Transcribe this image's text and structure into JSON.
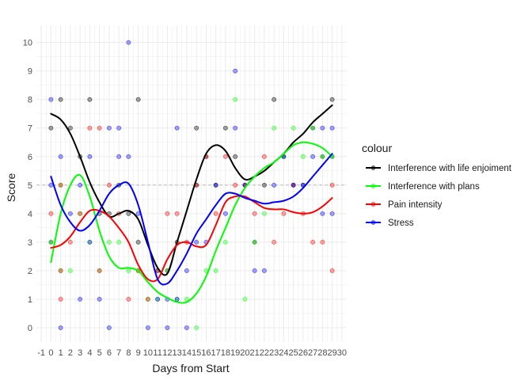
{
  "chart_data": {
    "type": "scatter",
    "title": "",
    "xlabel": "Days from Start",
    "ylabel": "Score",
    "xlim": [
      -1,
      30
    ],
    "ylim": [
      0,
      10
    ],
    "x_ticks": [
      -1,
      0,
      1,
      2,
      3,
      4,
      5,
      6,
      7,
      8,
      9,
      10,
      11,
      12,
      13,
      14,
      15,
      16,
      17,
      18,
      19,
      20,
      21,
      22,
      23,
      24,
      25,
      26,
      27,
      28,
      29,
      30
    ],
    "y_ticks": [
      0,
      1,
      2,
      3,
      4,
      5,
      6,
      7,
      8,
      9,
      10
    ],
    "reference_line": {
      "y": 5,
      "style": "dashed",
      "color": "#bdbdbd"
    },
    "grid": true,
    "legend": {
      "title": "colour",
      "position": "right"
    },
    "series": [
      {
        "name": "Interference with life enjoiment",
        "color": "#000000",
        "points": [
          [
            0,
            7
          ],
          [
            0,
            3
          ],
          [
            1,
            8
          ],
          [
            2,
            7
          ],
          [
            3,
            6
          ],
          [
            4,
            8
          ],
          [
            5,
            4
          ],
          [
            6,
            4
          ],
          [
            7,
            5
          ],
          [
            8,
            4
          ],
          [
            9,
            8
          ],
          [
            9,
            3
          ],
          [
            11,
            2
          ],
          [
            12,
            2
          ],
          [
            13,
            3
          ],
          [
            15,
            5
          ],
          [
            15,
            7
          ],
          [
            16,
            6
          ],
          [
            17,
            5
          ],
          [
            18,
            7
          ],
          [
            19,
            6
          ],
          [
            20,
            5
          ],
          [
            21,
            3
          ],
          [
            22,
            5
          ],
          [
            23,
            8
          ],
          [
            24,
            6
          ],
          [
            25,
            5
          ],
          [
            26,
            5
          ],
          [
            27,
            7
          ],
          [
            28,
            6
          ],
          [
            29,
            8
          ],
          [
            29,
            6
          ]
        ],
        "smooth": [
          [
            0,
            7.5
          ],
          [
            1,
            7.3
          ],
          [
            2,
            6.8
          ],
          [
            3,
            6.0
          ],
          [
            4,
            5.1
          ],
          [
            5,
            4.4
          ],
          [
            6,
            3.9
          ],
          [
            7,
            4.0
          ],
          [
            8,
            4.1
          ],
          [
            9,
            3.8
          ],
          [
            10,
            2.9
          ],
          [
            11,
            2.1
          ],
          [
            12,
            1.9
          ],
          [
            13,
            3.0
          ],
          [
            14,
            4.1
          ],
          [
            15,
            5.2
          ],
          [
            16,
            6.1
          ],
          [
            17,
            6.4
          ],
          [
            18,
            6.2
          ],
          [
            19,
            5.6
          ],
          [
            20,
            5.2
          ],
          [
            21,
            5.3
          ],
          [
            22,
            5.5
          ],
          [
            23,
            5.8
          ],
          [
            24,
            6.1
          ],
          [
            25,
            6.5
          ],
          [
            26,
            6.8
          ],
          [
            27,
            7.2
          ],
          [
            28,
            7.5
          ],
          [
            29,
            7.8
          ]
        ]
      },
      {
        "name": "Interference with plans",
        "color": "#00ff00",
        "points": [
          [
            0,
            3
          ],
          [
            1,
            2
          ],
          [
            1,
            5
          ],
          [
            2,
            2
          ],
          [
            3,
            4
          ],
          [
            4,
            3
          ],
          [
            5,
            2
          ],
          [
            6,
            3
          ],
          [
            7,
            3
          ],
          [
            8,
            2
          ],
          [
            9,
            2
          ],
          [
            10,
            1
          ],
          [
            11,
            1
          ],
          [
            12,
            2
          ],
          [
            13,
            1
          ],
          [
            14,
            1
          ],
          [
            15,
            0
          ],
          [
            16,
            2
          ],
          [
            17,
            2
          ],
          [
            18,
            3
          ],
          [
            19,
            8
          ],
          [
            20,
            1
          ],
          [
            21,
            3
          ],
          [
            22,
            4
          ],
          [
            23,
            7
          ],
          [
            24,
            6
          ],
          [
            25,
            7
          ],
          [
            26,
            6
          ],
          [
            27,
            7
          ],
          [
            28,
            6
          ],
          [
            29,
            6
          ]
        ],
        "smooth": [
          [
            0,
            2.3
          ],
          [
            1,
            4.0
          ],
          [
            2,
            5.0
          ],
          [
            3,
            5.35
          ],
          [
            4,
            4.6
          ],
          [
            5,
            3.4
          ],
          [
            6,
            2.5
          ],
          [
            7,
            2.1
          ],
          [
            8,
            2.1
          ],
          [
            9,
            2.0
          ],
          [
            10,
            1.6
          ],
          [
            11,
            1.25
          ],
          [
            12,
            1.05
          ],
          [
            13,
            0.9
          ],
          [
            14,
            0.9
          ],
          [
            15,
            1.2
          ],
          [
            16,
            1.8
          ],
          [
            17,
            2.7
          ],
          [
            18,
            3.5
          ],
          [
            19,
            4.3
          ],
          [
            20,
            4.9
          ],
          [
            21,
            5.3
          ],
          [
            22,
            5.6
          ],
          [
            23,
            5.8
          ],
          [
            24,
            6.1
          ],
          [
            25,
            6.4
          ],
          [
            26,
            6.5
          ],
          [
            27,
            6.45
          ],
          [
            28,
            6.3
          ],
          [
            29,
            6.0
          ]
        ]
      },
      {
        "name": "Pain intensity",
        "color": "#ff0000",
        "points": [
          [
            0,
            4
          ],
          [
            1,
            1
          ],
          [
            1,
            2
          ],
          [
            1,
            5
          ],
          [
            2,
            3
          ],
          [
            3,
            4
          ],
          [
            4,
            7
          ],
          [
            5,
            7
          ],
          [
            5,
            2
          ],
          [
            6,
            5
          ],
          [
            7,
            4
          ],
          [
            8,
            1
          ],
          [
            9,
            2
          ],
          [
            10,
            1
          ],
          [
            11,
            2
          ],
          [
            12,
            4
          ],
          [
            13,
            4
          ],
          [
            14,
            3
          ],
          [
            15,
            5
          ],
          [
            16,
            6
          ],
          [
            17,
            4
          ],
          [
            18,
            6
          ],
          [
            19,
            5
          ],
          [
            20,
            5
          ],
          [
            21,
            4
          ],
          [
            22,
            6
          ],
          [
            23,
            3
          ],
          [
            24,
            4
          ],
          [
            25,
            5
          ],
          [
            26,
            4
          ],
          [
            27,
            3
          ],
          [
            28,
            3
          ],
          [
            29,
            5
          ],
          [
            29,
            2
          ]
        ],
        "smooth": [
          [
            0,
            2.8
          ],
          [
            1,
            2.9
          ],
          [
            2,
            3.2
          ],
          [
            3,
            3.7
          ],
          [
            4,
            4.1
          ],
          [
            5,
            4.1
          ],
          [
            6,
            3.9
          ],
          [
            7,
            3.5
          ],
          [
            8,
            3.0
          ],
          [
            9,
            2.2
          ],
          [
            10,
            1.7
          ],
          [
            11,
            1.7
          ],
          [
            12,
            2.4
          ],
          [
            13,
            2.9
          ],
          [
            14,
            3.0
          ],
          [
            15,
            2.85
          ],
          [
            16,
            2.9
          ],
          [
            17,
            3.6
          ],
          [
            18,
            4.4
          ],
          [
            19,
            4.6
          ],
          [
            20,
            4.6
          ],
          [
            21,
            4.4
          ],
          [
            22,
            4.2
          ],
          [
            23,
            4.15
          ],
          [
            24,
            4.15
          ],
          [
            25,
            4.05
          ],
          [
            26,
            4.0
          ],
          [
            27,
            4.05
          ],
          [
            28,
            4.25
          ],
          [
            29,
            4.55
          ]
        ]
      },
      {
        "name": "Stress",
        "color": "#0000ff",
        "points": [
          [
            0,
            8
          ],
          [
            0,
            5
          ],
          [
            1,
            6
          ],
          [
            1,
            0
          ],
          [
            2,
            4
          ],
          [
            3,
            5
          ],
          [
            3,
            1
          ],
          [
            4,
            6
          ],
          [
            4,
            3
          ],
          [
            5,
            1
          ],
          [
            6,
            7
          ],
          [
            6,
            0
          ],
          [
            7,
            7
          ],
          [
            7,
            6
          ],
          [
            8,
            10
          ],
          [
            8,
            6
          ],
          [
            9,
            4
          ],
          [
            10,
            0
          ],
          [
            11,
            1
          ],
          [
            12,
            0
          ],
          [
            12,
            1
          ],
          [
            13,
            7
          ],
          [
            13,
            1
          ],
          [
            14,
            0
          ],
          [
            14,
            2
          ],
          [
            15,
            3
          ],
          [
            16,
            3
          ],
          [
            17,
            5
          ],
          [
            18,
            4
          ],
          [
            19,
            9
          ],
          [
            19,
            7
          ],
          [
            20,
            5
          ],
          [
            21,
            2
          ],
          [
            22,
            2
          ],
          [
            23,
            5
          ],
          [
            24,
            6
          ],
          [
            25,
            5
          ],
          [
            26,
            5
          ],
          [
            27,
            6
          ],
          [
            28,
            7
          ],
          [
            28,
            4
          ],
          [
            29,
            7
          ],
          [
            29,
            4
          ]
        ],
        "smooth": [
          [
            0,
            5.3
          ],
          [
            1,
            4.3
          ],
          [
            2,
            3.7
          ],
          [
            3,
            3.4
          ],
          [
            4,
            3.6
          ],
          [
            5,
            4.1
          ],
          [
            6,
            4.7
          ],
          [
            7,
            5.0
          ],
          [
            8,
            5.05
          ],
          [
            9,
            4.3
          ],
          [
            10,
            3.0
          ],
          [
            11,
            1.7
          ],
          [
            12,
            1.55
          ],
          [
            13,
            2.0
          ],
          [
            14,
            2.6
          ],
          [
            15,
            3.3
          ],
          [
            16,
            3.8
          ],
          [
            17,
            4.3
          ],
          [
            18,
            4.7
          ],
          [
            19,
            4.7
          ],
          [
            20,
            4.55
          ],
          [
            21,
            4.45
          ],
          [
            22,
            4.35
          ],
          [
            23,
            4.4
          ],
          [
            24,
            4.45
          ],
          [
            25,
            4.6
          ],
          [
            26,
            4.9
          ],
          [
            27,
            5.3
          ],
          [
            28,
            5.7
          ],
          [
            29,
            6.1
          ]
        ]
      }
    ]
  }
}
